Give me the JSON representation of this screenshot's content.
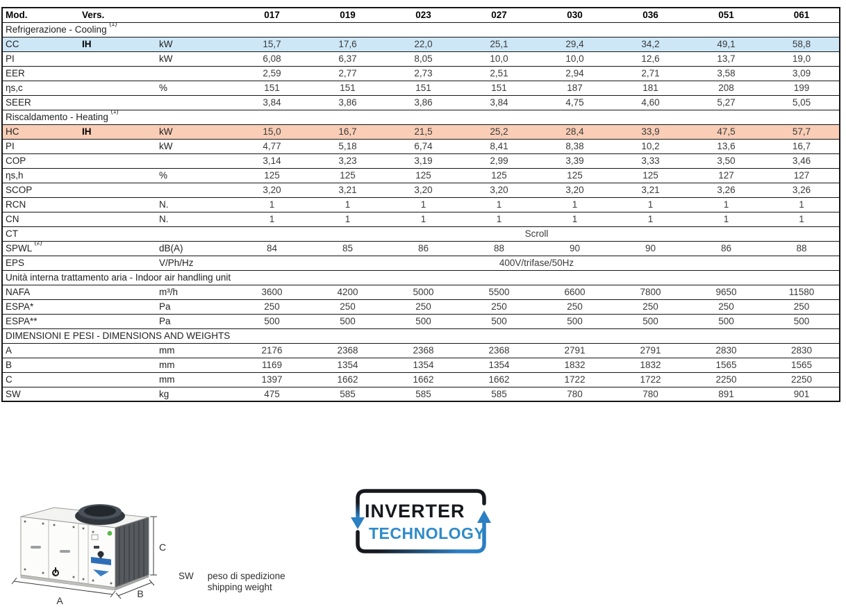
{
  "table": {
    "header": {
      "mod": "Mod.",
      "vers": "Vers.",
      "models": [
        "017",
        "019",
        "023",
        "027",
        "030",
        "036",
        "051",
        "061"
      ]
    },
    "rows": [
      {
        "type": "section",
        "label": "Refrigerazione - Cooling",
        "sup": "(1)"
      },
      {
        "type": "data",
        "label": "CC",
        "vers": "IH",
        "unit": "kW",
        "highlight": "cooling",
        "values": [
          "15,7",
          "17,6",
          "22,0",
          "25,1",
          "29,4",
          "34,2",
          "49,1",
          "58,8"
        ]
      },
      {
        "type": "data",
        "label": "PI",
        "vers": "",
        "unit": "kW",
        "values": [
          "6,08",
          "6,37",
          "8,05",
          "10,0",
          "10,0",
          "12,6",
          "13,7",
          "19,0"
        ]
      },
      {
        "type": "data",
        "label": "EER",
        "vers": "",
        "unit": "",
        "values": [
          "2,59",
          "2,77",
          "2,73",
          "2,51",
          "2,94",
          "2,71",
          "3,58",
          "3,09"
        ]
      },
      {
        "type": "data",
        "label": "ηs,c",
        "vers": "",
        "unit": "%",
        "values": [
          "151",
          "151",
          "151",
          "151",
          "187",
          "181",
          "208",
          "199"
        ]
      },
      {
        "type": "data",
        "label": "SEER",
        "vers": "",
        "unit": "",
        "values": [
          "3,84",
          "3,86",
          "3,86",
          "3,84",
          "4,75",
          "4,60",
          "5,27",
          "5,05"
        ]
      },
      {
        "type": "section",
        "label": "Riscaldamento - Heating",
        "sup": "(1)"
      },
      {
        "type": "data",
        "label": "HC",
        "vers": "IH",
        "unit": "kW",
        "highlight": "heating",
        "values": [
          "15,0",
          "16,7",
          "21,5",
          "25,2",
          "28,4",
          "33,9",
          "47,5",
          "57,7"
        ]
      },
      {
        "type": "data",
        "label": "PI",
        "vers": "",
        "unit": "kW",
        "values": [
          "4,77",
          "5,18",
          "6,74",
          "8,41",
          "8,38",
          "10,2",
          "13,6",
          "16,7"
        ]
      },
      {
        "type": "data",
        "label": "COP",
        "vers": "",
        "unit": "",
        "values": [
          "3,14",
          "3,23",
          "3,19",
          "2,99",
          "3,39",
          "3,33",
          "3,50",
          "3,46"
        ]
      },
      {
        "type": "data",
        "label": "ηs,h",
        "vers": "",
        "unit": "%",
        "values": [
          "125",
          "125",
          "125",
          "125",
          "125",
          "125",
          "127",
          "127"
        ]
      },
      {
        "type": "data",
        "label": "SCOP",
        "vers": "",
        "unit": "",
        "values": [
          "3,20",
          "3,21",
          "3,20",
          "3,20",
          "3,20",
          "3,21",
          "3,26",
          "3,26"
        ]
      },
      {
        "type": "data",
        "label": "RCN",
        "vers": "",
        "unit": "N.",
        "values": [
          "1",
          "1",
          "1",
          "1",
          "1",
          "1",
          "1",
          "1"
        ]
      },
      {
        "type": "data",
        "label": "CN",
        "vers": "",
        "unit": "N.",
        "values": [
          "1",
          "1",
          "1",
          "1",
          "1",
          "1",
          "1",
          "1"
        ]
      },
      {
        "type": "data",
        "label": "CT",
        "vers": "",
        "unit": "",
        "span": "Scroll"
      },
      {
        "type": "data",
        "label": "SPWL",
        "label_sup": "(2)",
        "vers": "",
        "unit": "dB(A)",
        "values": [
          "84",
          "85",
          "86",
          "88",
          "90",
          "90",
          "86",
          "88"
        ]
      },
      {
        "type": "data",
        "label": "EPS",
        "vers": "",
        "unit": "V/Ph/Hz",
        "span": "400V/trifase/50Hz"
      },
      {
        "type": "section",
        "label": "Unità interna trattamento aria - Indoor air handling unit"
      },
      {
        "type": "data",
        "label": "NAFA",
        "vers": "",
        "unit": "m³/h",
        "values": [
          "3600",
          "4200",
          "5000",
          "5500",
          "6600",
          "7800",
          "9650",
          "11580"
        ]
      },
      {
        "type": "data",
        "label": "ESPA*",
        "vers": "",
        "unit": "Pa",
        "values": [
          "250",
          "250",
          "250",
          "250",
          "250",
          "250",
          "250",
          "250"
        ]
      },
      {
        "type": "data",
        "label": "ESPA**",
        "vers": "",
        "unit": "Pa",
        "values": [
          "500",
          "500",
          "500",
          "500",
          "500",
          "500",
          "500",
          "500"
        ]
      },
      {
        "type": "section",
        "label": "DIMENSIONI E PESI - DIMENSIONS AND WEIGHTS"
      },
      {
        "type": "data",
        "label": "A",
        "vers": "",
        "unit": "mm",
        "values": [
          "2176",
          "2368",
          "2368",
          "2368",
          "2791",
          "2791",
          "2830",
          "2830"
        ]
      },
      {
        "type": "data",
        "label": "B",
        "vers": "",
        "unit": "mm",
        "values": [
          "1169",
          "1354",
          "1354",
          "1354",
          "1832",
          "1832",
          "1565",
          "1565"
        ]
      },
      {
        "type": "data",
        "label": "C",
        "vers": "",
        "unit": "mm",
        "values": [
          "1397",
          "1662",
          "1662",
          "1662",
          "1722",
          "1722",
          "2250",
          "2250"
        ]
      },
      {
        "type": "data",
        "label": "SW",
        "vers": "",
        "unit": "kg",
        "values": [
          "475",
          "585",
          "585",
          "585",
          "780",
          "780",
          "891",
          "901"
        ]
      }
    ]
  },
  "footer": {
    "sw_label": "SW",
    "sw_note": [
      "peso di spedizione",
      "shipping weight"
    ],
    "dimension_labels": {
      "a": "A",
      "b": "B",
      "c": "C"
    },
    "logo": {
      "line1": "INVERTER",
      "line2": "TECHNOLOGY"
    }
  },
  "colors": {
    "cooling_highlight": "#cde7f7",
    "heating_highlight": "#f9cdb6",
    "logo_blue": "#2f8bc9",
    "logo_dark": "#16181d",
    "border": "#151515"
  }
}
